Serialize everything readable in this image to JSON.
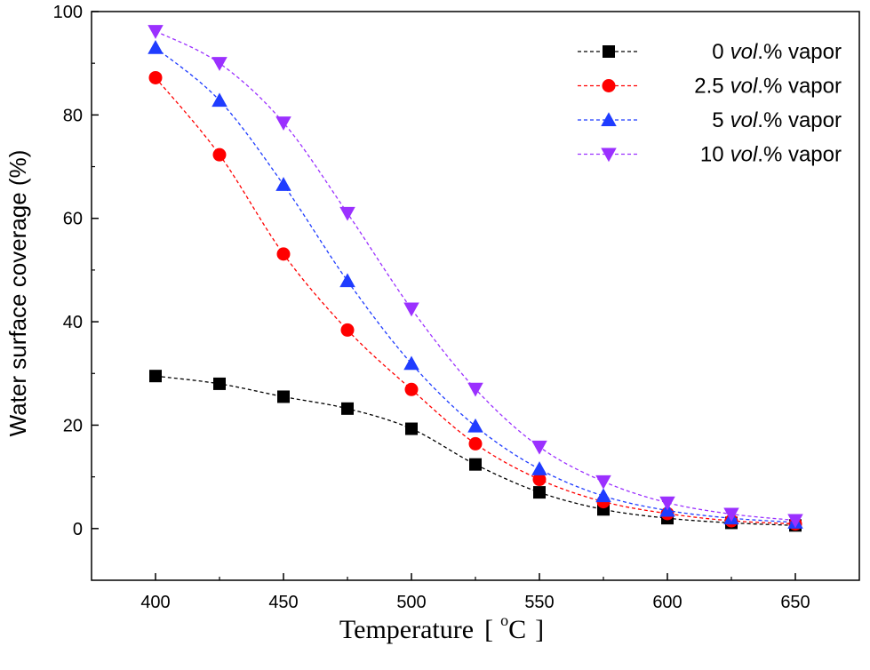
{
  "chart_data": {
    "type": "line",
    "title": "",
    "xlabel_main": "Temperature",
    "xlabel_unit_open": "[",
    "xlabel_unit_sup": "o",
    "xlabel_unit": "C",
    "xlabel_unit_close": "]",
    "ylabel": "Water surface coverage (%)",
    "xlim": [
      375,
      675
    ],
    "ylim": [
      -10,
      100
    ],
    "xticks": [
      400,
      450,
      500,
      550,
      600,
      650
    ],
    "yticks": [
      0,
      20,
      40,
      60,
      80,
      100
    ],
    "x": [
      400,
      425,
      450,
      475,
      500,
      525,
      550,
      575,
      600,
      625,
      650
    ],
    "legend_position": "top-right",
    "series": [
      {
        "name": "0 vol.% vapor",
        "legend_num": "0",
        "legend_vol": "vol",
        "legend_rest": ".% vapor",
        "marker": "square",
        "color": "#000000",
        "values": [
          29.5,
          28,
          25.5,
          23.2,
          19.3,
          12.4,
          7.0,
          3.7,
          2.0,
          1.1,
          0.6
        ]
      },
      {
        "name": "2.5 vol.% vapor",
        "legend_num": "2.5",
        "legend_vol": "vol",
        "legend_rest": ".% vapor",
        "marker": "circle",
        "color": "#ff0000",
        "values": [
          87.2,
          72.3,
          53.1,
          38.4,
          26.9,
          16.4,
          9.5,
          5.2,
          2.9,
          1.5,
          0.9
        ]
      },
      {
        "name": "5 vol.% vapor",
        "legend_num": "5",
        "legend_vol": "vol",
        "legend_rest": ".% vapor",
        "marker": "triangle-up",
        "color": "#1f3cff",
        "values": [
          93.0,
          82.8,
          66.5,
          47.9,
          31.9,
          19.8,
          11.5,
          6.3,
          3.5,
          2.0,
          1.2
        ]
      },
      {
        "name": "10 vol.% vapor",
        "legend_num": "10",
        "legend_vol": "vol",
        "legend_rest": ".% vapor",
        "marker": "triangle-down",
        "color": "#9b30ff",
        "values": [
          96.2,
          90.0,
          78.5,
          61.0,
          42.5,
          27.0,
          15.8,
          9.1,
          5.0,
          2.8,
          1.6
        ]
      }
    ]
  }
}
